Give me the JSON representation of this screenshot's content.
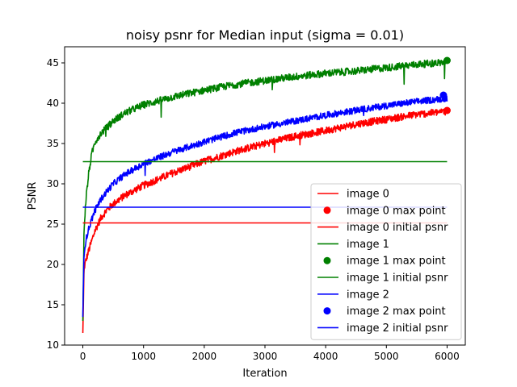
{
  "chart_data": {
    "type": "line",
    "title": "noisy psnr for Median input (sigma = 0.01)",
    "xlabel": "Iteration",
    "ylabel": "PSNR",
    "xlim": [
      -300,
      6300
    ],
    "ylim": [
      10,
      47
    ],
    "xticks": [
      0,
      1000,
      2000,
      3000,
      4000,
      5000,
      6000
    ],
    "yticks": [
      10,
      15,
      20,
      25,
      30,
      35,
      40,
      45
    ],
    "grid": false,
    "legend_placement": "lower-right",
    "colors": {
      "image0": "#ff0000",
      "image1": "#008000",
      "image2": "#0000ff"
    },
    "series": [
      {
        "name": "image 0",
        "kind": "line",
        "color": "#ff0000",
        "x": [
          0,
          20,
          50,
          100,
          150,
          200,
          300,
          400,
          500,
          700,
          1000,
          1500,
          2000,
          2500,
          3000,
          3500,
          4000,
          4500,
          5000,
          5500,
          6000
        ],
        "y": [
          11.5,
          19.5,
          20.5,
          21.8,
          23.0,
          24.2,
          25.8,
          26.8,
          27.5,
          28.6,
          29.8,
          31.4,
          32.8,
          34.0,
          35.0,
          35.9,
          36.6,
          37.4,
          38.0,
          38.6,
          39.0
        ],
        "noise": 0.45
      },
      {
        "name": "image 0 max point",
        "kind": "point",
        "color": "#ff0000",
        "x": 6000,
        "y": 39.1
      },
      {
        "name": "image 0 initial psnr",
        "kind": "hline",
        "color": "#ff0000",
        "y": 25.15,
        "x": [
          0,
          6000
        ]
      },
      {
        "name": "image 1",
        "kind": "line",
        "color": "#008000",
        "x": [
          0,
          20,
          50,
          100,
          150,
          200,
          300,
          400,
          500,
          700,
          1000,
          1500,
          2000,
          2500,
          3000,
          3500,
          4000,
          4500,
          5000,
          5500,
          6000
        ],
        "y": [
          13.0,
          24.5,
          28.0,
          31.5,
          33.8,
          35.2,
          36.3,
          37.0,
          37.8,
          38.8,
          39.8,
          40.8,
          41.6,
          42.3,
          42.8,
          43.3,
          43.7,
          44.0,
          44.4,
          44.8,
          45.1
        ],
        "noise": 0.45
      },
      {
        "name": "image 1 max point",
        "kind": "point",
        "color": "#008000",
        "x": 6000,
        "y": 45.3
      },
      {
        "name": "image 1 initial psnr",
        "kind": "hline",
        "color": "#008000",
        "y": 32.75,
        "x": [
          0,
          6000
        ]
      },
      {
        "name": "image 2",
        "kind": "line",
        "color": "#0000ff",
        "x": [
          0,
          20,
          50,
          100,
          150,
          200,
          300,
          400,
          500,
          700,
          1000,
          1500,
          2000,
          2500,
          3000,
          3500,
          4000,
          4500,
          5000,
          5500,
          6000
        ],
        "y": [
          13.5,
          21.5,
          23.0,
          24.5,
          25.7,
          26.7,
          28.1,
          29.1,
          30.0,
          31.2,
          32.5,
          34.0,
          35.2,
          36.3,
          37.1,
          37.8,
          38.5,
          39.1,
          39.7,
          40.2,
          40.6
        ],
        "noise": 0.4
      },
      {
        "name": "image 2 max point",
        "kind": "point",
        "color": "#0000ff",
        "x": 5940,
        "y": 41.0
      },
      {
        "name": "image 2 initial psnr",
        "kind": "hline",
        "color": "#0000ff",
        "y": 27.1,
        "x": [
          0,
          6000
        ]
      }
    ]
  }
}
